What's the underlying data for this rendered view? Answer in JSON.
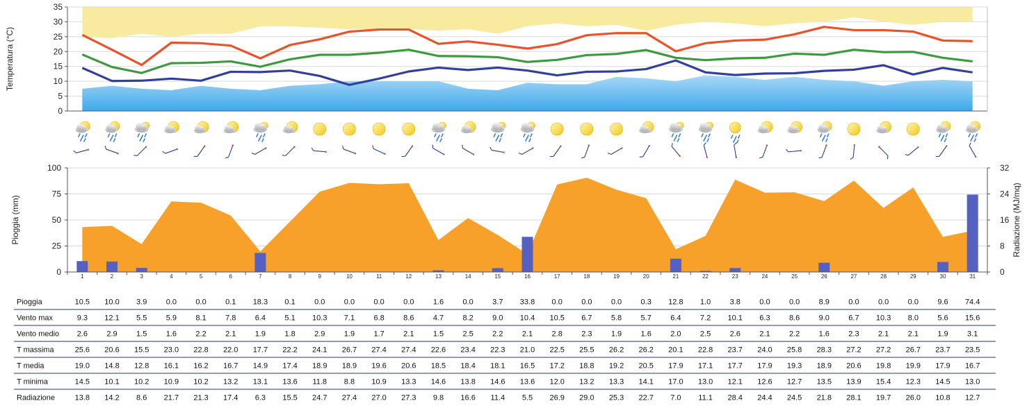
{
  "chart_data": [
    {
      "type": "line",
      "ylabel": "Temperatura (°C)",
      "ylim": [
        0,
        35
      ],
      "yticks": [
        "0",
        "5",
        "10",
        "15",
        "20",
        "25",
        "30",
        "35"
      ],
      "grid": true,
      "days": [
        1,
        2,
        3,
        4,
        5,
        6,
        7,
        8,
        9,
        10,
        11,
        12,
        13,
        14,
        15,
        16,
        17,
        18,
        19,
        20,
        21,
        22,
        23,
        24,
        25,
        26,
        27,
        28,
        29,
        30,
        31
      ],
      "series": [
        {
          "name": "T massima",
          "color": "#e8532a",
          "values": [
            25.6,
            20.6,
            15.5,
            23.0,
            22.8,
            22.0,
            17.7,
            22.2,
            24.1,
            26.7,
            27.4,
            27.4,
            22.6,
            23.4,
            22.3,
            21.0,
            22.5,
            25.5,
            26.2,
            26.2,
            20.1,
            22.8,
            23.7,
            24.0,
            25.8,
            28.3,
            27.2,
            27.2,
            26.7,
            23.7,
            23.5
          ]
        },
        {
          "name": "T media",
          "color": "#3e9a3e",
          "values": [
            19.0,
            14.8,
            12.8,
            16.1,
            16.2,
            16.7,
            14.9,
            17.4,
            18.9,
            18.9,
            19.6,
            20.6,
            18.5,
            18.4,
            18.1,
            16.5,
            17.2,
            18.8,
            19.2,
            20.5,
            17.9,
            17.1,
            17.7,
            17.9,
            19.3,
            18.9,
            20.6,
            19.8,
            19.9,
            17.9,
            16.7
          ]
        },
        {
          "name": "T minima",
          "color": "#33409b",
          "values": [
            14.5,
            10.1,
            10.2,
            10.9,
            10.2,
            13.2,
            13.1,
            13.6,
            11.8,
            8.8,
            10.9,
            13.3,
            14.6,
            13.8,
            14.6,
            13.6,
            12.0,
            13.2,
            13.3,
            14.1,
            17.0,
            13.0,
            12.1,
            12.6,
            12.7,
            13.5,
            13.9,
            15.4,
            12.3,
            14.5,
            13.0
          ]
        }
      ],
      "band_upper_max": [
        35,
        35,
        35,
        35,
        35,
        35,
        35,
        35,
        35,
        35,
        35,
        35,
        35,
        35,
        35,
        35,
        35,
        35,
        35,
        35,
        35,
        35,
        35,
        35,
        35,
        35,
        35,
        35,
        35,
        35,
        35
      ],
      "band_upper_min": [
        25,
        24.5,
        26,
        25,
        26,
        26,
        28.5,
        28.5,
        28,
        27.5,
        27.5,
        27.5,
        27,
        27.5,
        26,
        28.5,
        29.5,
        28.5,
        29,
        27,
        29,
        30,
        29.5,
        28.5,
        29.5,
        30,
        31.5,
        30,
        29,
        30,
        30
      ],
      "band_lower_top": [
        7.5,
        8.5,
        7.5,
        7.0,
        8.5,
        7.5,
        7.0,
        8.5,
        9.0,
        10.0,
        10.0,
        10.0,
        10.0,
        7.5,
        7.0,
        9.5,
        9.0,
        9.0,
        11.5,
        11.0,
        10.0,
        12.0,
        11.5,
        10.5,
        11.5,
        10.5,
        10.0,
        8.5,
        10.0,
        10.5,
        10.0
      ],
      "band_upper_color": "#f8eba0",
      "band_lower_color": "#7fc6ef"
    },
    {
      "type": "bar",
      "ylabel": "Pioggia (mm)",
      "y2label": "Radiazione (MJ/mq)",
      "ylim": [
        0,
        100
      ],
      "y2lim": [
        0,
        32
      ],
      "yticks": [
        "0",
        "25",
        "50",
        "75",
        "100"
      ],
      "y2ticks": [
        "0",
        "8",
        "16",
        "24",
        "32"
      ],
      "grid": true,
      "categories": [
        "1",
        "2",
        "3",
        "4",
        "5",
        "6",
        "7",
        "8",
        "9",
        "10",
        "11",
        "12",
        "13",
        "14",
        "15",
        "16",
        "17",
        "18",
        "19",
        "20",
        "21",
        "22",
        "23",
        "24",
        "25",
        "26",
        "27",
        "28",
        "29",
        "30",
        "31"
      ],
      "series": [
        {
          "name": "Pioggia",
          "color": "#5560c2",
          "values": [
            10.5,
            10.0,
            3.9,
            0.0,
            0.0,
            0.1,
            18.3,
            0.1,
            0.0,
            0.0,
            0.0,
            0.0,
            1.6,
            0.0,
            3.7,
            33.8,
            0.0,
            0.0,
            0.0,
            0.3,
            12.8,
            1.0,
            3.8,
            0.0,
            0.0,
            8.9,
            0.0,
            0.0,
            0.0,
            9.6,
            74.4
          ]
        },
        {
          "name": "Radiazione",
          "color": "#f7a12a",
          "values": [
            13.8,
            14.2,
            8.6,
            21.7,
            21.3,
            17.4,
            6.3,
            15.5,
            24.7,
            27.4,
            27.0,
            27.3,
            9.8,
            16.6,
            11.4,
            5.5,
            26.9,
            29.0,
            25.3,
            22.7,
            7.0,
            11.1,
            28.4,
            24.4,
            24.5,
            21.8,
            28.1,
            19.7,
            26.0,
            10.8,
            12.7
          ]
        }
      ]
    },
    {
      "type": "table",
      "rows": [
        {
          "label": "Pioggia",
          "values": [
            "10.5",
            "10.0",
            "3.9",
            "0.0",
            "0.0",
            "0.1",
            "18.3",
            "0.1",
            "0.0",
            "0.0",
            "0.0",
            "0.0",
            "1.6",
            "0.0",
            "3.7",
            "33.8",
            "0.0",
            "0.0",
            "0.0",
            "0.3",
            "12.8",
            "1.0",
            "3.8",
            "0.0",
            "0.0",
            "8.9",
            "0.0",
            "0.0",
            "0.0",
            "9.6",
            "74.4"
          ]
        },
        {
          "label": "Vento max",
          "values": [
            "9.3",
            "12.1",
            "5.5",
            "5.9",
            "8.1",
            "7.8",
            "6.4",
            "5.1",
            "10.3",
            "7.1",
            "6.8",
            "8.6",
            "4.7",
            "8.2",
            "9.0",
            "10.4",
            "10.5",
            "6.7",
            "5.8",
            "5.7",
            "6.4",
            "7.2",
            "10.1",
            "6.3",
            "8.6",
            "9.0",
            "6.7",
            "10.3",
            "8.0",
            "5.6",
            "15.6"
          ]
        },
        {
          "label": "Vento medio",
          "values": [
            "2.6",
            "2.9",
            "1.5",
            "1.6",
            "2.2",
            "2.1",
            "1.9",
            "1.8",
            "2.9",
            "1.9",
            "1.7",
            "2.1",
            "1.5",
            "2.5",
            "2.2",
            "2.1",
            "2.8",
            "2.3",
            "1.9",
            "1.6",
            "2.0",
            "2.5",
            "2.6",
            "2.1",
            "2.2",
            "1.6",
            "2.3",
            "2.1",
            "2.1",
            "1.9",
            "3.1"
          ]
        },
        {
          "label": "T massima",
          "values": [
            "25.6",
            "20.6",
            "15.5",
            "23.0",
            "22.8",
            "22.0",
            "17.7",
            "22.2",
            "24.1",
            "26.7",
            "27.4",
            "27.4",
            "22.6",
            "23.4",
            "22.3",
            "21.0",
            "22.5",
            "25.5",
            "26.2",
            "26.2",
            "20.1",
            "22.8",
            "23.7",
            "24.0",
            "25.8",
            "28.3",
            "27.2",
            "27.2",
            "26.7",
            "23.7",
            "23.5"
          ]
        },
        {
          "label": "T media",
          "values": [
            "19.0",
            "14.8",
            "12.8",
            "16.1",
            "16.2",
            "16.7",
            "14.9",
            "17.4",
            "18.9",
            "18.9",
            "19.6",
            "20.6",
            "18.5",
            "18.4",
            "18.1",
            "16.5",
            "17.2",
            "18.8",
            "19.2",
            "20.5",
            "17.9",
            "17.1",
            "17.7",
            "17.9",
            "19.3",
            "18.9",
            "20.6",
            "19.8",
            "19.9",
            "17.9",
            "16.7"
          ]
        },
        {
          "label": "T minima",
          "values": [
            "14.5",
            "10.1",
            "10.2",
            "10.9",
            "10.2",
            "13.2",
            "13.1",
            "13.6",
            "11.8",
            "8.8",
            "10.9",
            "13.3",
            "14.6",
            "13.8",
            "14.6",
            "13.6",
            "12.0",
            "13.2",
            "13.3",
            "14.1",
            "17.0",
            "13.0",
            "12.1",
            "12.6",
            "12.7",
            "13.5",
            "13.9",
            "15.4",
            "12.3",
            "14.5",
            "13.0"
          ]
        },
        {
          "label": "Radiazione",
          "values": [
            "13.8",
            "14.2",
            "8.6",
            "21.7",
            "21.3",
            "17.4",
            "6.3",
            "15.5",
            "24.7",
            "27.4",
            "27.0",
            "27.3",
            "9.8",
            "16.6",
            "11.4",
            "5.5",
            "26.9",
            "29.0",
            "25.3",
            "22.7",
            "7.0",
            "11.1",
            "28.4",
            "24.4",
            "24.5",
            "21.8",
            "28.1",
            "19.7",
            "26.0",
            "10.8",
            "12.7"
          ]
        }
      ],
      "border_color": "#1f3a6e"
    }
  ],
  "weather_icons": [
    "sun-cloud-rain",
    "sun-cloud-rain",
    "cloud-rain",
    "sun-cloud",
    "sun-cloud",
    "sun-cloud",
    "cloud-rain",
    "sun-cloud",
    "sun",
    "sun",
    "sun",
    "sun",
    "cloud-rain",
    "sun-cloud",
    "cloud-rain",
    "cloud-rain",
    "sun",
    "sun",
    "sun",
    "sun-cloud",
    "cloud-rain",
    "cloud-rain",
    "sun-rain",
    "sun-cloud",
    "sun-cloud",
    "sun-cloud-rain",
    "sun",
    "sun-cloud",
    "sun",
    "sun-cloud-rain",
    "sun-cloud-rain"
  ],
  "wind_directions_deg": [
    255,
    290,
    225,
    250,
    215,
    200,
    240,
    225,
    275,
    290,
    295,
    215,
    300,
    300,
    280,
    240,
    215,
    200,
    240,
    210,
    320,
    345,
    350,
    200,
    265,
    200,
    185,
    135,
    230,
    215,
    330
  ]
}
